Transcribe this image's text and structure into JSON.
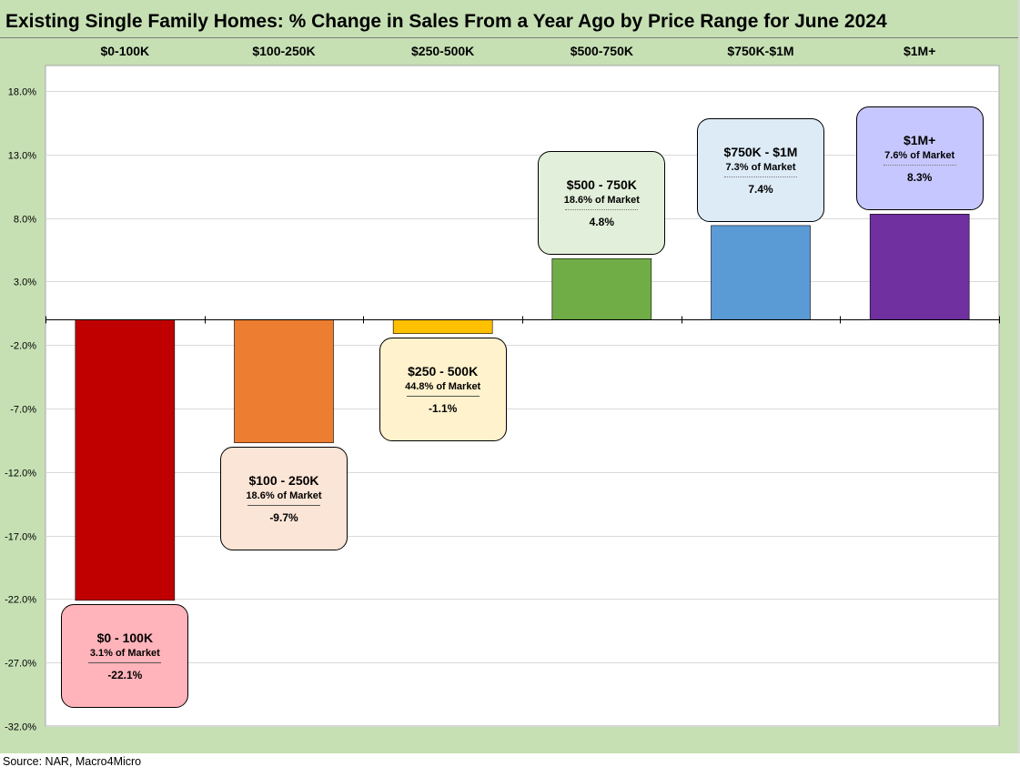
{
  "title": "Existing Single Family Homes: % Change in Sales From a Year Ago by Price Range for June 2024",
  "source": "Source: NAR, Macro4Micro",
  "colors": {
    "background": "#c6e0b4",
    "plot": "#ffffff",
    "grid": "#d9d9d9"
  },
  "chart_data": {
    "type": "bar",
    "title": "Existing Single Family Homes: % Change in Sales From a Year Ago by Price Range for June 2024",
    "xlabel": "",
    "ylabel": "",
    "ylim": [
      -32,
      20
    ],
    "yticks": [
      18,
      13,
      8,
      3,
      -2,
      -7,
      -12,
      -17,
      -22,
      -27,
      -32
    ],
    "ytick_labels": [
      "18.0%",
      "13.0%",
      "8.0%",
      "3.0%",
      "-2.0%",
      "-7.0%",
      "-12.0%",
      "-17.0%",
      "-22.0%",
      "-27.0%",
      "-32.0%"
    ],
    "grid": true,
    "category_axis_position": "top",
    "categories": [
      "$0-100K",
      "$100-250K",
      "$250-500K",
      "$500-750K",
      "$750K-$1M",
      "$1M+"
    ],
    "values": [
      -22.1,
      -9.7,
      -1.1,
      4.8,
      7.4,
      8.3
    ],
    "bar_colors": [
      "#c00000",
      "#ed7d31",
      "#ffc000",
      "#70ad47",
      "#5b9bd5",
      "#7030a0"
    ],
    "annotations": [
      {
        "range": "$0 - 100K",
        "share": "3.1% of Market",
        "value": "-22.1%",
        "fill": "#ffb3ba",
        "rule": "solid"
      },
      {
        "range": "$100 - 250K",
        "share": "18.6% of Market",
        "value": "-9.7%",
        "fill": "#fbe5d6",
        "rule": "solid"
      },
      {
        "range": "$250 - 500K",
        "share": "44.8% of Market",
        "value": "-1.1%",
        "fill": "#fff2cc",
        "rule": "solid"
      },
      {
        "range": "$500 - 750K",
        "share": "18.6% of Market",
        "value": "4.8%",
        "fill": "#e2efda",
        "rule": "dotted"
      },
      {
        "range": "$750K - $1M",
        "share": "7.3% of Market",
        "value": "7.4%",
        "fill": "#ddebf7",
        "rule": "dotted"
      },
      {
        "range": "$1M+",
        "share": "7.6% of Market",
        "value": "8.3%",
        "fill": "#c7c7ff",
        "rule": "dotted"
      }
    ]
  }
}
